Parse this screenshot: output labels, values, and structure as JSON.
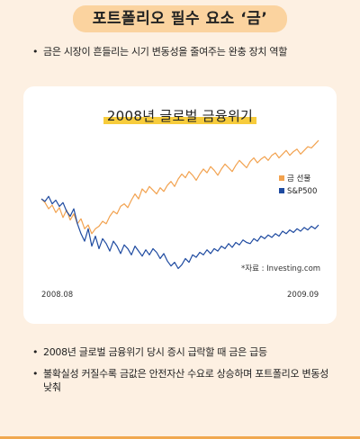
{
  "page": {
    "title": "포트폴리오 필수 요소 ‘금’",
    "intro_bullet": "금은 시장이 흔들리는 시기 변동성을 줄여주는 완충 장치 역할",
    "bullets": [
      "2008년 글로벌 금융위기 당시 증시 급락할 때 금은 급등",
      "불확실성 커질수록 금값은 안전자산 수요로 상승하며 포트폴리오 변동성 낮춰"
    ]
  },
  "chart_data": {
    "type": "line",
    "title": "2008년 글로벌 금융위기",
    "source": "*자료 : Investing.com",
    "x_start_label": "2008.08",
    "x_end_label": "2009.09",
    "y_note": "no y-axis labels; values are relative index levels",
    "colors": {
      "gold": "#f2a24f",
      "sp500": "#1e4aa0"
    },
    "series": [
      {
        "name": "금 선물",
        "key": "gold",
        "values": [
          100,
          97,
          92,
          95,
          89,
          93,
          85,
          91,
          83,
          88,
          80,
          84,
          76,
          79,
          72,
          76,
          78,
          82,
          80,
          86,
          90,
          88,
          94,
          96,
          93,
          99,
          104,
          100,
          108,
          105,
          110,
          107,
          104,
          109,
          106,
          111,
          114,
          110,
          116,
          120,
          117,
          122,
          119,
          115,
          120,
          124,
          121,
          126,
          123,
          119,
          124,
          128,
          125,
          122,
          127,
          131,
          128,
          125,
          130,
          133,
          129,
          132,
          134,
          131,
          135,
          137,
          133,
          136,
          139,
          135,
          138,
          140,
          136,
          139,
          142,
          141,
          144,
          147
        ]
      },
      {
        "name": "S&P500",
        "key": "sp500",
        "values": [
          100,
          98,
          102,
          96,
          99,
          94,
          97,
          90,
          86,
          92,
          80,
          72,
          66,
          76,
          62,
          70,
          60,
          68,
          64,
          58,
          66,
          62,
          56,
          63,
          60,
          55,
          62,
          58,
          54,
          59,
          55,
          60,
          57,
          52,
          56,
          50,
          46,
          49,
          44,
          47,
          52,
          49,
          55,
          53,
          57,
          55,
          59,
          56,
          60,
          58,
          62,
          60,
          64,
          61,
          65,
          63,
          67,
          65,
          64,
          68,
          66,
          70,
          68,
          71,
          69,
          72,
          70,
          74,
          72,
          75,
          73,
          76,
          74,
          77,
          75,
          78,
          76,
          79
        ]
      }
    ]
  }
}
